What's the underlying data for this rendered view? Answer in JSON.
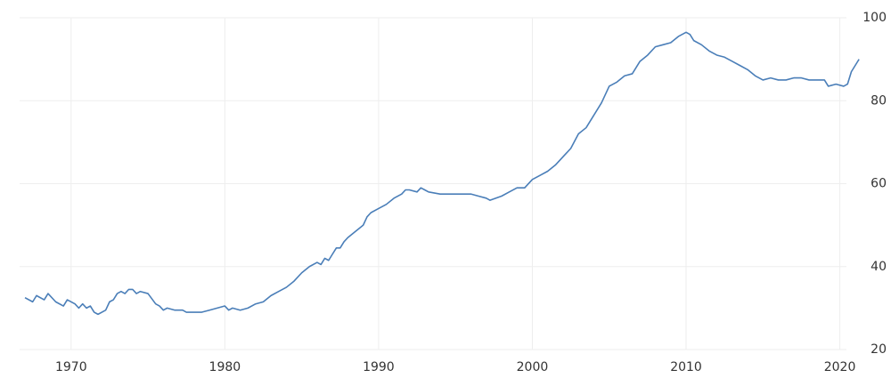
{
  "chart_data": {
    "type": "line",
    "x": [
      1967.0,
      1967.5,
      1967.75,
      1968.25,
      1968.5,
      1969.0,
      1969.5,
      1969.75,
      1970.25,
      1970.5,
      1970.75,
      1971.0,
      1971.25,
      1971.5,
      1971.75,
      1972.0,
      1972.25,
      1972.5,
      1972.75,
      1973.0,
      1973.25,
      1973.5,
      1973.75,
      1974.0,
      1974.25,
      1974.5,
      1975.0,
      1975.5,
      1975.75,
      1976.0,
      1976.25,
      1976.75,
      1977.25,
      1977.5,
      1978.0,
      1978.5,
      1979.0,
      1979.5,
      1980.0,
      1980.25,
      1980.5,
      1981.0,
      1981.5,
      1982.0,
      1982.5,
      1983.0,
      1983.5,
      1984.0,
      1984.5,
      1985.0,
      1985.5,
      1986.0,
      1986.25,
      1986.5,
      1986.75,
      1987.0,
      1987.25,
      1987.5,
      1987.75,
      1988.0,
      1988.5,
      1989.0,
      1989.25,
      1989.5,
      1990.0,
      1990.5,
      1991.0,
      1991.5,
      1991.75,
      1992.0,
      1992.5,
      1992.75,
      1993.0,
      1993.25,
      1994.0,
      1995.0,
      1996.0,
      1996.5,
      1997.0,
      1997.25,
      1998.0,
      1998.5,
      1999.0,
      1999.5,
      2000.0,
      2000.5,
      2001.0,
      2001.5,
      2002.0,
      2002.5,
      2003.0,
      2003.5,
      2004.0,
      2004.5,
      2005.0,
      2005.5,
      2006.0,
      2006.5,
      2007.0,
      2007.5,
      2008.0,
      2008.5,
      2009.0,
      2009.5,
      2010.0,
      2010.25,
      2010.5,
      2011.0,
      2011.5,
      2012.0,
      2012.5,
      2013.0,
      2013.5,
      2014.0,
      2014.5,
      2015.0,
      2015.5,
      2016.0,
      2016.5,
      2017.0,
      2017.5,
      2018.0,
      2018.5,
      2019.0,
      2019.25,
      2019.75,
      2020.25,
      2020.5,
      2020.75,
      2021.25
    ],
    "series": [
      {
        "color": "#4a7eb8",
        "values": [
          32.5,
          31.5,
          33,
          32,
          33.5,
          31.5,
          30.5,
          32,
          31,
          30,
          31,
          30,
          30.5,
          29,
          28.5,
          29,
          29.5,
          31.5,
          32,
          33.5,
          34,
          33.5,
          34.5,
          34.5,
          33.5,
          34,
          33.5,
          31,
          30.5,
          29.5,
          30,
          29.5,
          29.5,
          29,
          29,
          29,
          29.5,
          30,
          30.5,
          29.5,
          30,
          29.5,
          30,
          31,
          31.5,
          33,
          34,
          35,
          36.5,
          38.5,
          40,
          41,
          40.5,
          42,
          41.5,
          43,
          44.5,
          44.5,
          46,
          47,
          48.5,
          50,
          52,
          53,
          54,
          55,
          56.5,
          57.5,
          58.5,
          58.5,
          58,
          59,
          58.5,
          58,
          57.5,
          57.5,
          57.5,
          57,
          56.5,
          56,
          57,
          58,
          59,
          59,
          61,
          62,
          63,
          64.5,
          66.5,
          68.5,
          72,
          73.5,
          76.5,
          79.5,
          83.5,
          84.5,
          86,
          86.5,
          89.5,
          91,
          93,
          93.5,
          94,
          95.5,
          96.5,
          96,
          94.5,
          93.5,
          92,
          91,
          90.5,
          89.5,
          88.5,
          87.5,
          86,
          85,
          85.5,
          85,
          85,
          85.5,
          85.5,
          85,
          85,
          85,
          83.5,
          84,
          83.5,
          84,
          87,
          90
        ]
      }
    ],
    "xlim": [
      1966.65,
      2021.3
    ],
    "xticks": [
      1970,
      1980,
      1990,
      2000,
      2010,
      2020
    ],
    "ylim": [
      20,
      100
    ],
    "yticks": [
      20,
      40,
      60,
      80,
      100
    ],
    "grid": true
  }
}
